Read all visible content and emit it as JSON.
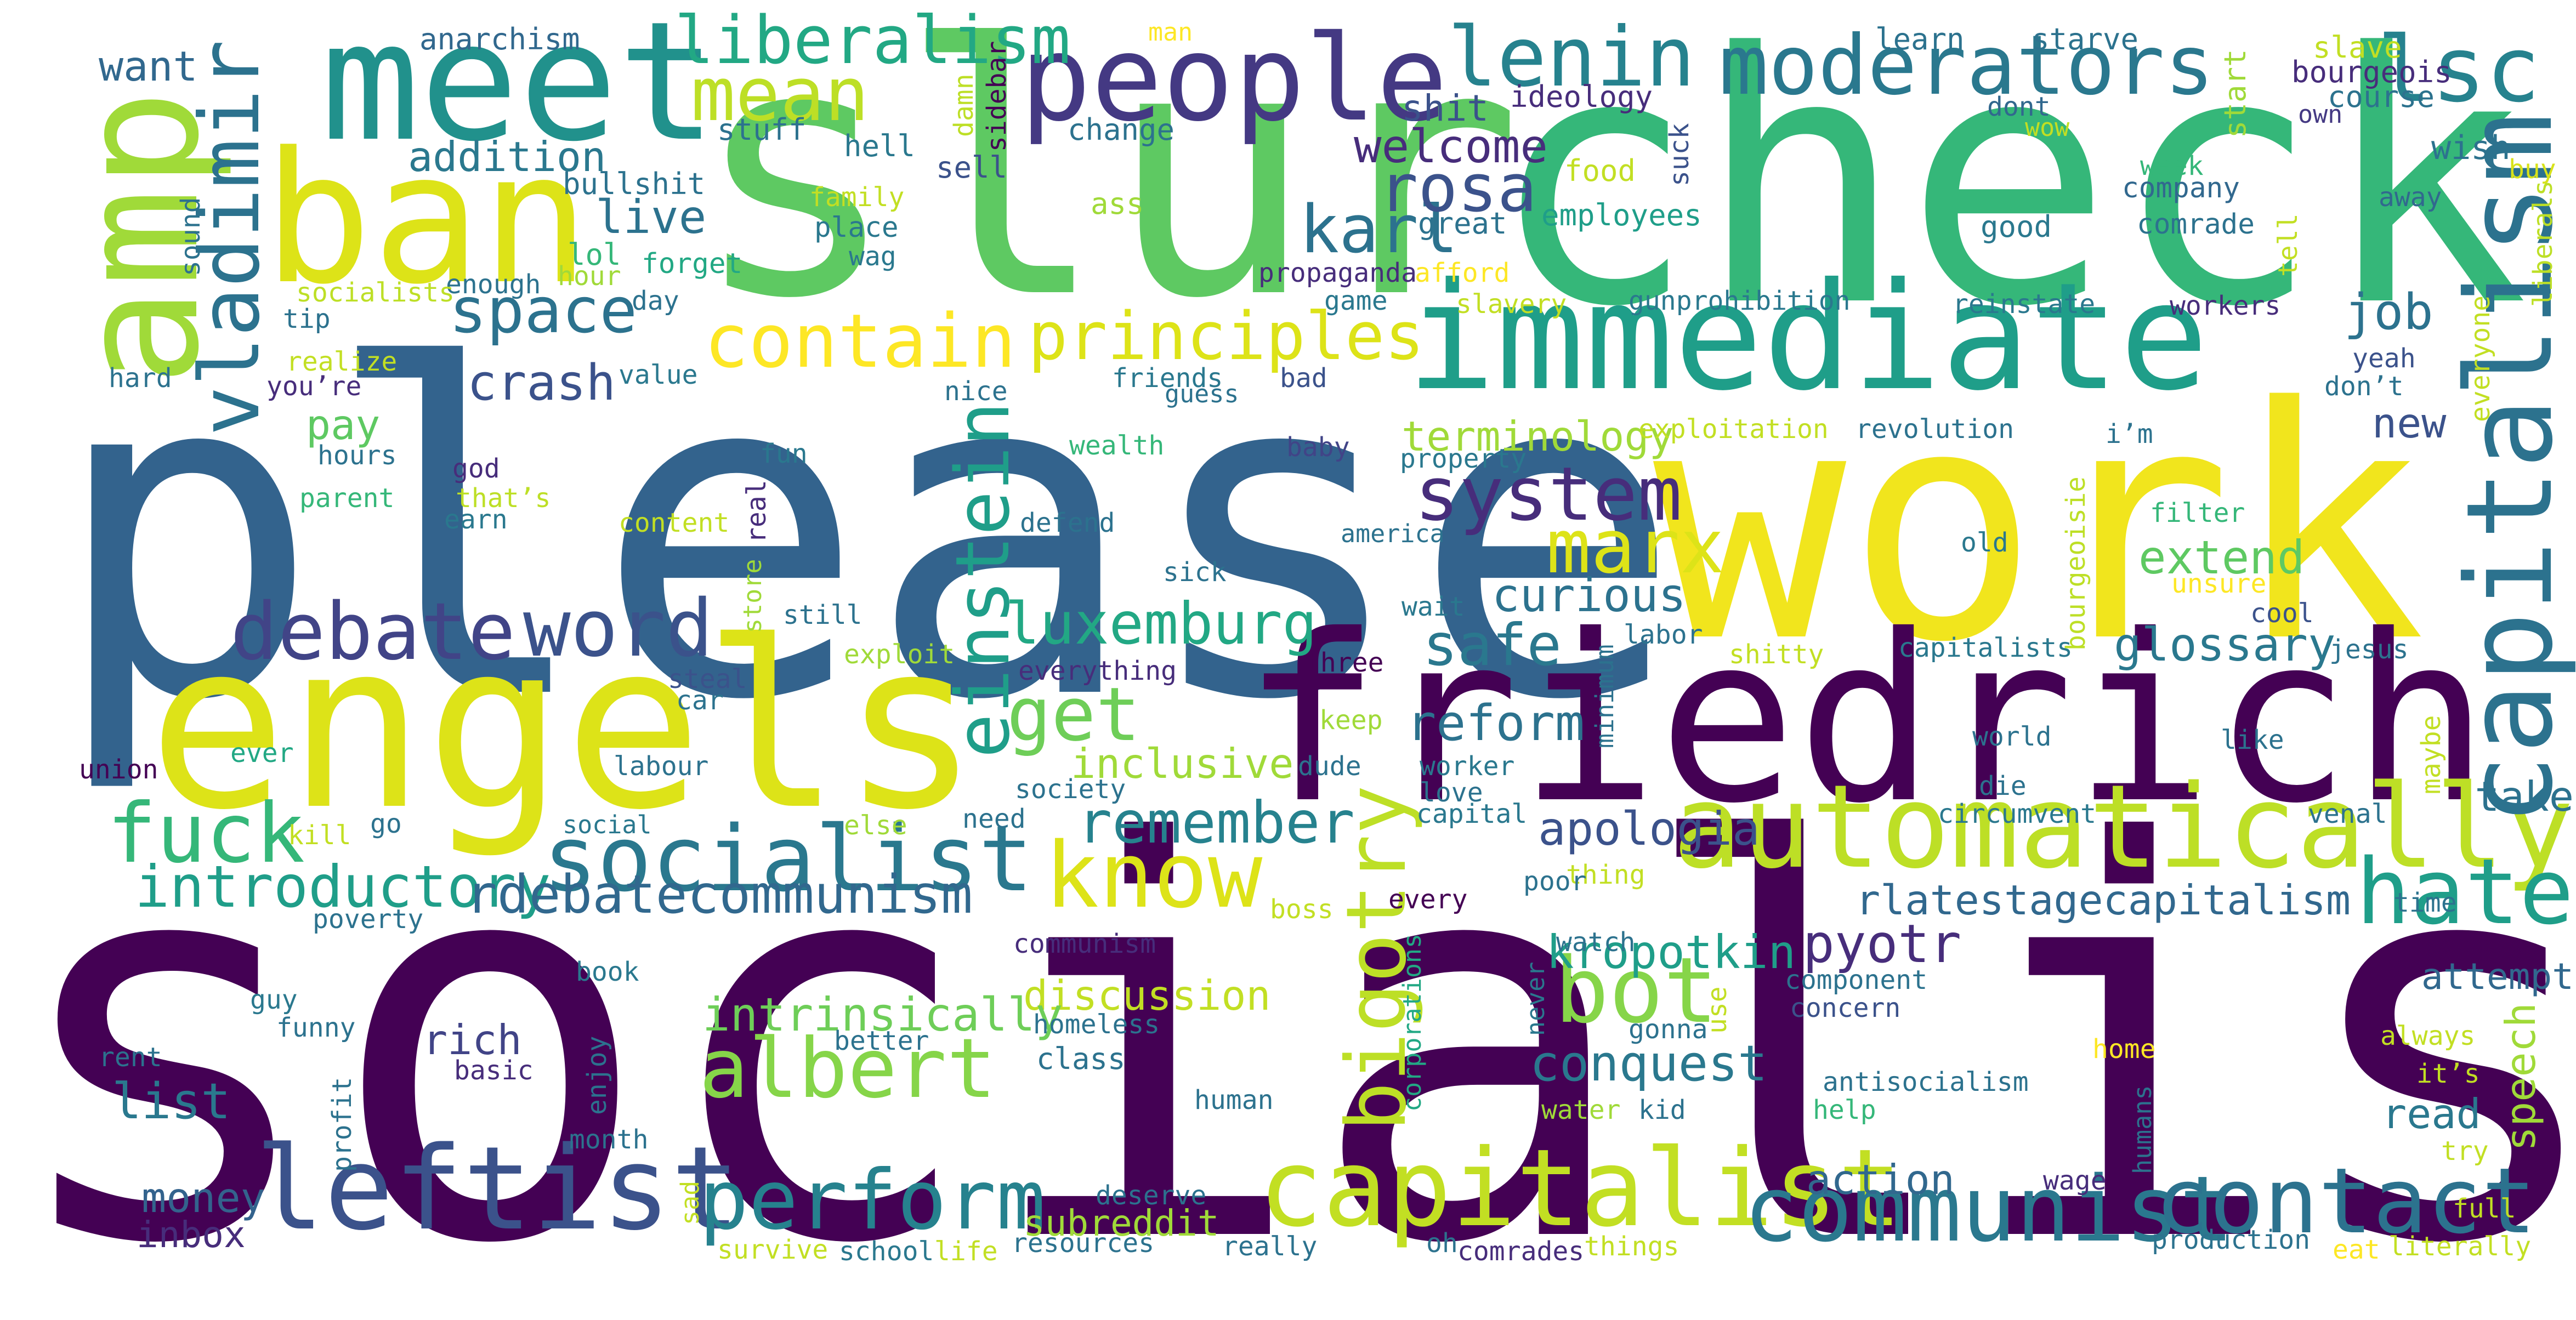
{
  "words": [
    {
      "text": "socialism",
      "color": "#440154"
    },
    {
      "text": "please",
      "color": "#33638d"
    },
    {
      "text": "slur",
      "color": "#5ec962"
    },
    {
      "text": "check",
      "color": "#35b779"
    },
    {
      "text": "work",
      "color": "#f1e51d"
    },
    {
      "text": "friedrich",
      "color": "#440154"
    },
    {
      "text": "engels",
      "color": "#dde318"
    },
    {
      "text": "meet",
      "color": "#21918c"
    },
    {
      "text": "ban",
      "color": "#dde318"
    },
    {
      "text": "amp",
      "color": "#a0da39"
    },
    {
      "text": "immediate",
      "color": "#1f9e89"
    },
    {
      "text": "automatically",
      "color": "#bddf26"
    },
    {
      "text": "capitalism",
      "color": "#2c728e"
    },
    {
      "text": "capitalist",
      "color": "#c2df23"
    },
    {
      "text": "communist",
      "color": "#2a788e"
    },
    {
      "text": "leftist",
      "color": "#3b528b"
    },
    {
      "text": "socialist",
      "color": "#2a788e"
    },
    {
      "text": "people",
      "color": "#443983"
    },
    {
      "text": "moderators",
      "color": "#2a788e"
    },
    {
      "text": "lenin",
      "color": "#26828e"
    },
    {
      "text": "lsc",
      "color": "#26828e"
    },
    {
      "text": "liberalism",
      "color": "#22a884"
    },
    {
      "text": "mean",
      "color": "#bddf26"
    },
    {
      "text": "vladimir",
      "color": "#2c728e"
    },
    {
      "text": "einstein",
      "color": "#1f9e89"
    },
    {
      "text": "albert",
      "color": "#86d549"
    },
    {
      "text": "know",
      "color": "#dde318"
    },
    {
      "text": "bot",
      "color": "#86d549"
    },
    {
      "text": "bigotry",
      "color": "#bddf26"
    },
    {
      "text": "perform",
      "color": "#26828e"
    },
    {
      "text": "contact",
      "color": "#2c728e"
    },
    {
      "text": "hate",
      "color": "#1f9e89"
    },
    {
      "text": "debate",
      "color": "#414487"
    },
    {
      "text": "word",
      "color": "#3b528b"
    },
    {
      "text": "fuck",
      "color": "#35b779"
    },
    {
      "text": "system",
      "color": "#472d7b"
    },
    {
      "text": "marx",
      "color": "#dde318"
    },
    {
      "text": "contain",
      "color": "#fde725"
    },
    {
      "text": "principles",
      "color": "#dde318"
    },
    {
      "text": "get",
      "color": "#6ece58"
    },
    {
      "text": "karl",
      "color": "#2c728e"
    },
    {
      "text": "rosa",
      "color": "#3b528b"
    },
    {
      "text": "space",
      "color": "#2c728e"
    },
    {
      "text": "introductory",
      "color": "#1f9e89"
    },
    {
      "text": "rdebatecommunism",
      "color": "#31688e"
    },
    {
      "text": "luxemburg",
      "color": "#22a884"
    },
    {
      "text": "safe",
      "color": "#2a788e"
    },
    {
      "text": "remember",
      "color": "#26828e"
    },
    {
      "text": "reform",
      "color": "#2c728e"
    },
    {
      "text": "apologia",
      "color": "#3b528b"
    },
    {
      "text": "rlatestagecapitalism",
      "color": "#31688e"
    },
    {
      "text": "kropotkin",
      "color": "#1f9e89"
    },
    {
      "text": "pyotr",
      "color": "#472d7b"
    },
    {
      "text": "conquest",
      "color": "#2a788e"
    },
    {
      "text": "action",
      "color": "#31688e"
    },
    {
      "text": "speech",
      "color": "#a0da39"
    },
    {
      "text": "discussion",
      "color": "#c2df23"
    },
    {
      "text": "intrinsically",
      "color": "#6ece58"
    },
    {
      "text": "extend",
      "color": "#5ec962"
    },
    {
      "text": "glossary",
      "color": "#2a788e"
    },
    {
      "text": "job",
      "color": "#2c728e"
    },
    {
      "text": "new",
      "color": "#3b528b"
    },
    {
      "text": "curious",
      "color": "#2c728e"
    },
    {
      "text": "inclusive",
      "color": "#a0da39"
    },
    {
      "text": "welcome",
      "color": "#472d7b"
    },
    {
      "text": "terminology",
      "color": "#a0da39"
    },
    {
      "text": "addition",
      "color": "#2a788e"
    },
    {
      "text": "live",
      "color": "#2c728e"
    },
    {
      "text": "crash",
      "color": "#3b528b"
    },
    {
      "text": "pay",
      "color": "#5ec962"
    },
    {
      "text": "list",
      "color": "#2a788e"
    },
    {
      "text": "money",
      "color": "#33638d"
    },
    {
      "text": "inbox",
      "color": "#472d7b"
    },
    {
      "text": "rich",
      "color": "#414487"
    },
    {
      "text": "subreddit",
      "color": "#a0da39"
    },
    {
      "text": "want",
      "color": "#31688e"
    },
    {
      "text": "shit",
      "color": "#3b528b"
    },
    {
      "text": "take",
      "color": "#2c728e"
    },
    {
      "text": "read",
      "color": "#2a788e"
    },
    {
      "text": "attempt",
      "color": "#31688e"
    },
    {
      "text": "anarchism",
      "color": "#31688e"
    },
    {
      "text": "man",
      "color": "#fde725"
    },
    {
      "text": "learn",
      "color": "#2c728e"
    },
    {
      "text": "starve",
      "color": "#2c728e"
    },
    {
      "text": "slave",
      "color": "#c2df23"
    },
    {
      "text": "bourgeois",
      "color": "#472d7b"
    },
    {
      "text": "course",
      "color": "#2c728e"
    },
    {
      "text": "own",
      "color": "#443983"
    },
    {
      "text": "start",
      "color": "#a0da39"
    },
    {
      "text": "damn",
      "color": "#bddf26"
    },
    {
      "text": "sidebar",
      "color": "#440154"
    },
    {
      "text": "stuff",
      "color": "#2c728e"
    },
    {
      "text": "change",
      "color": "#2c728e"
    },
    {
      "text": "ideology",
      "color": "#472d7b"
    },
    {
      "text": "dont",
      "color": "#31688e"
    },
    {
      "text": "wow",
      "color": "#c2df23"
    },
    {
      "text": "wish",
      "color": "#2c728e"
    },
    {
      "text": "buy",
      "color": "#d8e219"
    },
    {
      "text": "hell",
      "color": "#2a788e"
    },
    {
      "text": "sell",
      "color": "#3b528b"
    },
    {
      "text": "family",
      "color": "#c2df23"
    },
    {
      "text": "ass",
      "color": "#a0da39"
    },
    {
      "text": "suck",
      "color": "#3b528b"
    },
    {
      "text": "food",
      "color": "#c2df23"
    },
    {
      "text": "week",
      "color": "#35b779"
    },
    {
      "text": "company",
      "color": "#31688e"
    },
    {
      "text": "away",
      "color": "#31688e"
    },
    {
      "text": "bullshit",
      "color": "#2c728e"
    },
    {
      "text": "place",
      "color": "#2a788e"
    },
    {
      "text": "sound",
      "color": "#2c728e"
    },
    {
      "text": "lol",
      "color": "#35b779"
    },
    {
      "text": "hour",
      "color": "#a0da39"
    },
    {
      "text": "wag",
      "color": "#2a788e"
    },
    {
      "text": "great",
      "color": "#2c728e"
    },
    {
      "text": "employees",
      "color": "#1f9e89"
    },
    {
      "text": "good",
      "color": "#2a788e"
    },
    {
      "text": "comrade",
      "color": "#2c728e"
    },
    {
      "text": "tell",
      "color": "#c2df23"
    },
    {
      "text": "liberals",
      "color": "#bddf26"
    },
    {
      "text": "enough",
      "color": "#2c728e"
    },
    {
      "text": "forget",
      "color": "#22a884"
    },
    {
      "text": "propaganda",
      "color": "#472d7b"
    },
    {
      "text": "afford",
      "color": "#fde725"
    },
    {
      "text": "socialists",
      "color": "#bddf26"
    },
    {
      "text": "day",
      "color": "#2c728e"
    },
    {
      "text": "game",
      "color": "#2a788e"
    },
    {
      "text": "slavery",
      "color": "#c2df23"
    },
    {
      "text": "gunprohibition",
      "color": "#2a788e"
    },
    {
      "text": "reinstate",
      "color": "#2a788e"
    },
    {
      "text": "workers",
      "color": "#472d7b"
    },
    {
      "text": "everyone",
      "color": "#c2df23"
    },
    {
      "text": "tip",
      "color": "#2c728e"
    },
    {
      "text": "realize",
      "color": "#c2df23"
    },
    {
      "text": "value",
      "color": "#2a788e"
    },
    {
      "text": "friends",
      "color": "#2a788e"
    },
    {
      "text": "bad",
      "color": "#3b528b"
    },
    {
      "text": "yeah",
      "color": "#3b528b"
    },
    {
      "text": "hard",
      "color": "#2c728e"
    },
    {
      "text": "you’re",
      "color": "#472d7b"
    },
    {
      "text": "nice",
      "color": "#2c728e"
    },
    {
      "text": "guess",
      "color": "#2c728e"
    },
    {
      "text": "don’t",
      "color": "#2c728e"
    },
    {
      "text": "hours",
      "color": "#2c728e"
    },
    {
      "text": "fun",
      "color": "#2a788e"
    },
    {
      "text": "wealth",
      "color": "#35b779"
    },
    {
      "text": "baby",
      "color": "#414487"
    },
    {
      "text": "exploitation",
      "color": "#c2df23"
    },
    {
      "text": "revolution",
      "color": "#2c728e"
    },
    {
      "text": "i’m",
      "color": "#2c728e"
    },
    {
      "text": "god",
      "color": "#472d7b"
    },
    {
      "text": "parent",
      "color": "#35b779"
    },
    {
      "text": "real",
      "color": "#472d7b"
    },
    {
      "text": "property",
      "color": "#2a788e"
    },
    {
      "text": "that’s",
      "color": "#bddf26"
    },
    {
      "text": "earn",
      "color": "#2a788e"
    },
    {
      "text": "content",
      "color": "#c2df23"
    },
    {
      "text": "defend",
      "color": "#2c728e"
    },
    {
      "text": "america",
      "color": "#2c728e"
    },
    {
      "text": "bourgeoisie",
      "color": "#bddf26"
    },
    {
      "text": "filter",
      "color": "#35b779"
    },
    {
      "text": "old",
      "color": "#2a788e"
    },
    {
      "text": "unsure",
      "color": "#fde725"
    },
    {
      "text": "cool",
      "color": "#3b528b"
    },
    {
      "text": "store",
      "color": "#a0da39"
    },
    {
      "text": "sick",
      "color": "#2c728e"
    },
    {
      "text": "wait",
      "color": "#2a788e"
    },
    {
      "text": "still",
      "color": "#2c728e"
    },
    {
      "text": "exploit",
      "color": "#a0da39"
    },
    {
      "text": "labor",
      "color": "#2c728e"
    },
    {
      "text": "shitty",
      "color": "#c2df23"
    },
    {
      "text": "capitalists",
      "color": "#2a788e"
    },
    {
      "text": "jesus",
      "color": "#2c728e"
    },
    {
      "text": "three",
      "color": "#440154"
    },
    {
      "text": "everything",
      "color": "#472d7b"
    },
    {
      "text": "minimum",
      "color": "#2c728e"
    },
    {
      "text": "steal",
      "color": "#3b528b"
    },
    {
      "text": "car",
      "color": "#2c728e"
    },
    {
      "text": "keep",
      "color": "#a0da39"
    },
    {
      "text": "world",
      "color": "#2c728e"
    },
    {
      "text": "like",
      "color": "#2c728e"
    },
    {
      "text": "maybe",
      "color": "#c2df23"
    },
    {
      "text": "union",
      "color": "#440154"
    },
    {
      "text": "ever",
      "color": "#22a884"
    },
    {
      "text": "labour",
      "color": "#2c728e"
    },
    {
      "text": "dude",
      "color": "#2c728e"
    },
    {
      "text": "worker",
      "color": "#2a788e"
    },
    {
      "text": "love",
      "color": "#2c728e"
    },
    {
      "text": "die",
      "color": "#2c728e"
    },
    {
      "text": "kill",
      "color": "#c2df23"
    },
    {
      "text": "go",
      "color": "#2c728e"
    },
    {
      "text": "social",
      "color": "#2a788e"
    },
    {
      "text": "else",
      "color": "#a0da39"
    },
    {
      "text": "need",
      "color": "#2c728e"
    },
    {
      "text": "society",
      "color": "#2c728e"
    },
    {
      "text": "capital",
      "color": "#2a788e"
    },
    {
      "text": "circumvent",
      "color": "#2a788e"
    },
    {
      "text": "venal",
      "color": "#2c728e"
    },
    {
      "text": "poverty",
      "color": "#2c728e"
    },
    {
      "text": "boss",
      "color": "#c2df23"
    },
    {
      "text": "thing",
      "color": "#c2df23"
    },
    {
      "text": "poor",
      "color": "#2c728e"
    },
    {
      "text": "every",
      "color": "#440154"
    },
    {
      "text": "time",
      "color": "#2c728e"
    },
    {
      "text": "communism",
      "color": "#472d7b"
    },
    {
      "text": "watch",
      "color": "#2c728e"
    },
    {
      "text": "never",
      "color": "#2a788e"
    },
    {
      "text": "corporations",
      "color": "#22a884"
    },
    {
      "text": "book",
      "color": "#2a788e"
    },
    {
      "text": "guy",
      "color": "#2a788e"
    },
    {
      "text": "funny",
      "color": "#2c728e"
    },
    {
      "text": "homeless",
      "color": "#2c728e"
    },
    {
      "text": "component",
      "color": "#2c728e"
    },
    {
      "text": "concern",
      "color": "#3b528b"
    },
    {
      "text": "use",
      "color": "#c2df23"
    },
    {
      "text": "gonna",
      "color": "#2c728e"
    },
    {
      "text": "always",
      "color": "#c2df23"
    },
    {
      "text": "rent",
      "color": "#2c728e"
    },
    {
      "text": "class",
      "color": "#2c728e"
    },
    {
      "text": "better",
      "color": "#2c728e"
    },
    {
      "text": "home",
      "color": "#fde725"
    },
    {
      "text": "enjoy",
      "color": "#2c728e"
    },
    {
      "text": "basic",
      "color": "#472d7b"
    },
    {
      "text": "profit",
      "color": "#2c728e"
    },
    {
      "text": "it’s",
      "color": "#c2df23"
    },
    {
      "text": "human",
      "color": "#2c728e"
    },
    {
      "text": "antisocialism",
      "color": "#2c728e"
    },
    {
      "text": "water",
      "color": "#a0da39"
    },
    {
      "text": "kid",
      "color": "#2c728e"
    },
    {
      "text": "help",
      "color": "#35b779"
    },
    {
      "text": "humans",
      "color": "#2c728e"
    },
    {
      "text": "month",
      "color": "#2c728e"
    },
    {
      "text": "try",
      "color": "#c2df23"
    },
    {
      "text": "deserve",
      "color": "#2c728e"
    },
    {
      "text": "sad",
      "color": "#c2df23"
    },
    {
      "text": "wage",
      "color": "#472d7b"
    },
    {
      "text": "full",
      "color": "#c2df23"
    },
    {
      "text": "survive",
      "color": "#c2df23"
    },
    {
      "text": "school",
      "color": "#2a788e"
    },
    {
      "text": "life",
      "color": "#c2df23"
    },
    {
      "text": "resources",
      "color": "#2c728e"
    },
    {
      "text": "really",
      "color": "#2c728e"
    },
    {
      "text": "oh",
      "color": "#2c728e"
    },
    {
      "text": "comrades",
      "color": "#472d7b"
    },
    {
      "text": "things",
      "color": "#c2df23"
    },
    {
      "text": "production",
      "color": "#2c728e"
    },
    {
      "text": "eat",
      "color": "#fde725"
    },
    {
      "text": "literally",
      "color": "#c2df23"
    }
  ]
}
